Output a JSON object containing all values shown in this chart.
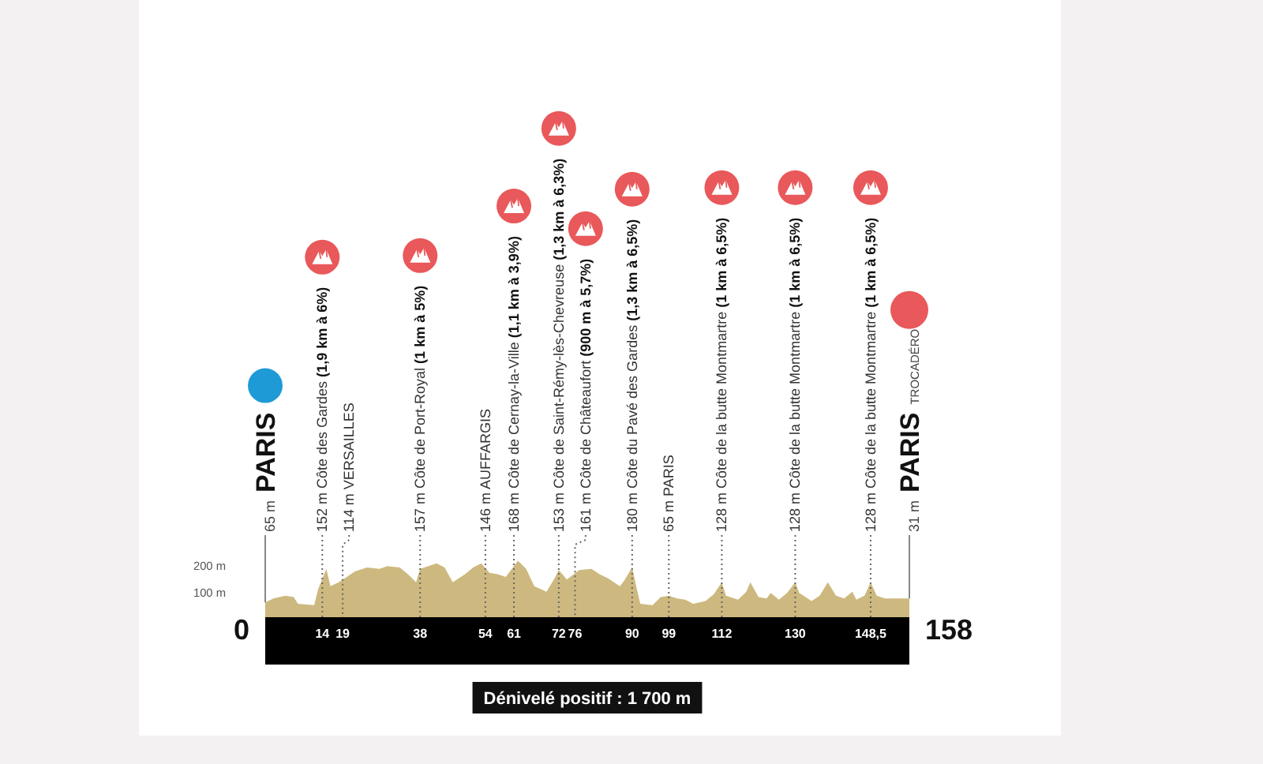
{
  "chart_data": {
    "type": "area",
    "color": "#cdb97f",
    "x": [
      0,
      2,
      5,
      7,
      8,
      12,
      13,
      15,
      16,
      18,
      20,
      22,
      25,
      28,
      30,
      33,
      35,
      37,
      38,
      40,
      42,
      44,
      46,
      49,
      51,
      53,
      55,
      57,
      59,
      62,
      64,
      66,
      69,
      71,
      72,
      74,
      77,
      80,
      82,
      84,
      87,
      88,
      90,
      91,
      92,
      95,
      97,
      99,
      101,
      103,
      105,
      108,
      110,
      112,
      113,
      116,
      118,
      119,
      121,
      123,
      124,
      126,
      128,
      130,
      131,
      134,
      136,
      138,
      140,
      142,
      144,
      145,
      147,
      148.5,
      150,
      152,
      158
    ],
    "values": [
      65,
      80,
      90,
      85,
      60,
      55,
      115,
      190,
      125,
      140,
      160,
      180,
      195,
      190,
      200,
      195,
      170,
      140,
      190,
      200,
      210,
      195,
      140,
      170,
      195,
      210,
      175,
      170,
      160,
      220,
      190,
      125,
      105,
      155,
      185,
      150,
      185,
      190,
      170,
      155,
      125,
      145,
      195,
      125,
      60,
      55,
      85,
      90,
      80,
      75,
      60,
      70,
      95,
      140,
      90,
      75,
      105,
      140,
      85,
      80,
      100,
      75,
      100,
      140,
      100,
      70,
      90,
      140,
      90,
      80,
      105,
      75,
      90,
      140,
      90,
      80,
      80
    ],
    "xlim": [
      0,
      158
    ],
    "xticks": [
      14,
      19,
      38,
      54,
      61,
      72,
      76,
      90,
      99,
      112,
      130,
      {
        "value": 148.5,
        "label": "148,5"
      }
    ],
    "ylim": [
      10,
      280
    ],
    "yticks": [
      {
        "value": 100,
        "label": "100 m"
      },
      {
        "value": 200,
        "label": "200 m"
      }
    ],
    "annotations": [
      {
        "text": "65 m PARIS",
        "x": 0,
        "y": 65
      },
      {
        "text": "152 m Côte des Gardes (1,9 km à 6%)",
        "x": 14
      },
      {
        "text": "114 m VERSAILLES",
        "x": 19
      },
      {
        "text": "157 m Côte de Port-Royal (1 km à 5%)",
        "x": 38
      },
      {
        "text": "146 m AUFFARGIS",
        "x": 54
      },
      {
        "text": "168 m Côte de Cernay-la-Ville (1,1 km à 3,9%)",
        "x": 61
      },
      {
        "text": "153 m Côte de Saint-Rémy-lès-Chevreuse (1,3 km à 6,3%)",
        "x": 72
      },
      {
        "text": "161 m Côte de Châteaufort (900 m à 5,7%)",
        "x": 76
      },
      {
        "text": "180 m Côte du Pavé des Gardes (1,3 km à 6,5%)",
        "x": 90
      },
      {
        "text": "65 m PARIS",
        "x": 99
      },
      {
        "text": "128 m Côte de la butte Montmartre (1 km à 6,5%)",
        "x": 112
      },
      {
        "text": "128 m Côte de la butte Montmartre (1 km à 6,5%)",
        "x": 130
      },
      {
        "text": "128 m Côte de la butte Montmartre (1 km à 6,5%)",
        "x": 148.5
      },
      {
        "text": "31 m PARIS TROCADÉRO",
        "x": 158,
        "y": 80
      },
      "0",
      "158",
      "Dénivelé positif : 1 700 m"
    ]
  }
}
